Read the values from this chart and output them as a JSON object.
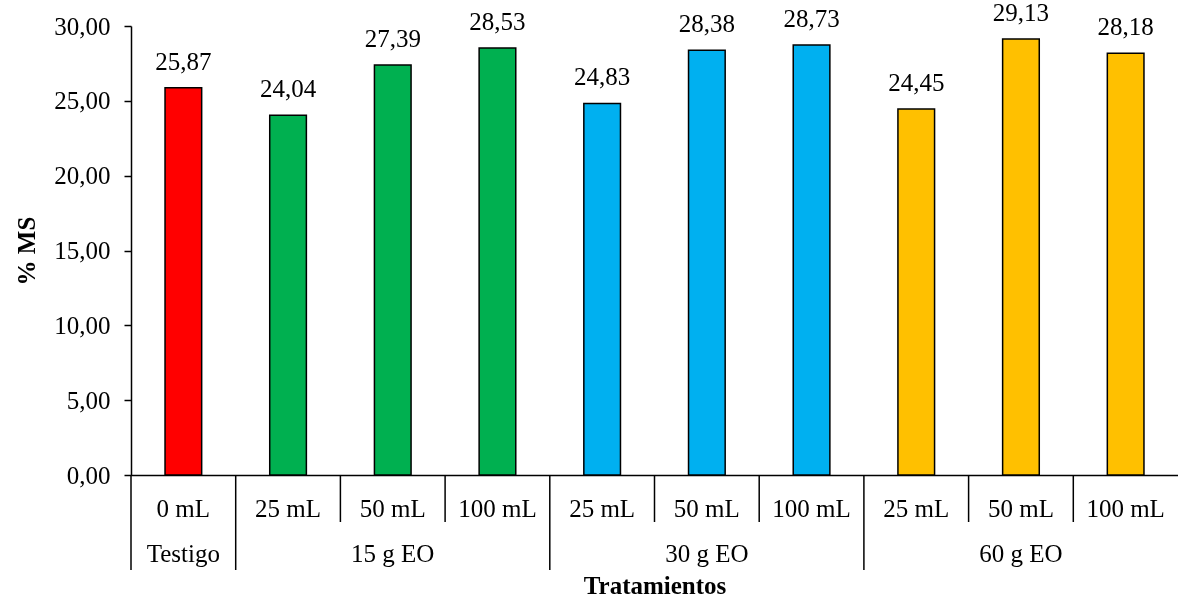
{
  "chart_data": {
    "type": "bar",
    "xlabel": "Tratamientos",
    "ylabel": "% MS",
    "legend": "bottom",
    "categories": [
      "0 mL",
      "25 mL",
      "50 mL",
      "100 mL",
      "25 mL",
      "50 mL",
      "100 mL",
      "25 mL",
      "50 mL",
      "100 mL"
    ],
    "series": [
      {
        "name": "Testigo",
        "color": "#ff0000",
        "values": [
          25.87,
          null,
          null,
          null,
          null,
          null,
          null,
          null,
          null,
          null
        ],
        "value_labels": [
          "25,87",
          null,
          null,
          null,
          null,
          null,
          null,
          null,
          null,
          null
        ]
      },
      {
        "name": "15 g EO",
        "color": "#00b050",
        "values": [
          null,
          24.04,
          27.39,
          28.53,
          null,
          null,
          null,
          null,
          null,
          null
        ],
        "value_labels": [
          null,
          "24,04",
          "27,39",
          "28,53",
          null,
          null,
          null,
          null,
          null,
          null
        ]
      },
      {
        "name": "30 g EO",
        "color": "#00b0f0",
        "values": [
          null,
          null,
          null,
          null,
          24.83,
          28.38,
          28.73,
          null,
          null,
          null
        ],
        "value_labels": [
          null,
          null,
          null,
          null,
          "24,83",
          "28,38",
          "28,73",
          null,
          null,
          null
        ]
      },
      {
        "name": "60 g EO",
        "color": "#ffc000",
        "values": [
          null,
          null,
          null,
          null,
          null,
          null,
          null,
          24.45,
          29.13,
          28.18
        ],
        "value_labels": [
          null,
          null,
          null,
          null,
          null,
          null,
          null,
          "24,45",
          "29,13",
          "28,18"
        ]
      }
    ],
    "ylim": [
      0,
      30
    ],
    "yticks": [
      {
        "value": 0,
        "label": "0,00"
      },
      {
        "value": 5,
        "label": "5,00"
      },
      {
        "value": 10,
        "label": "10,00"
      },
      {
        "value": 15,
        "label": "15,00"
      },
      {
        "value": 20,
        "label": "20,00"
      },
      {
        "value": 25,
        "label": "25,00"
      },
      {
        "value": 30,
        "label": "30,00"
      }
    ]
  }
}
